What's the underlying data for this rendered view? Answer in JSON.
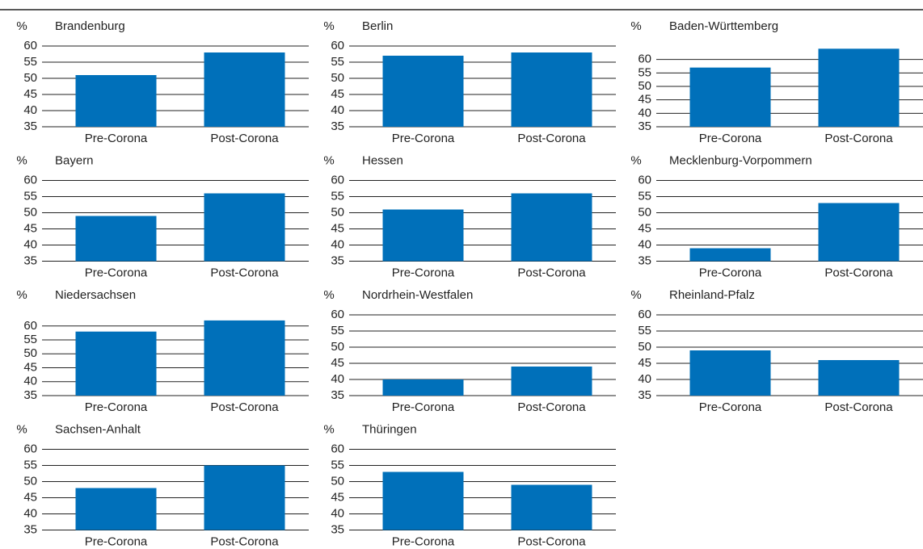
{
  "chart_data": [
    {
      "type": "bar",
      "title": "Brandenburg",
      "y_label": "%",
      "categories": [
        "Pre-Corona",
        "Post-Corona"
      ],
      "values": [
        51,
        58
      ],
      "color": "#0070ba",
      "ylim": [
        35,
        60
      ],
      "yticks": [
        35,
        40,
        45,
        50,
        55,
        60
      ]
    },
    {
      "type": "bar",
      "title": "Berlin",
      "y_label": "%",
      "categories": [
        "Pre-Corona",
        "Post-Corona"
      ],
      "values": [
        57,
        58
      ],
      "color": "#0070ba",
      "ylim": [
        35,
        60
      ],
      "yticks": [
        35,
        40,
        45,
        50,
        55,
        60
      ]
    },
    {
      "type": "bar",
      "title": "Baden-Württemberg",
      "y_label": "%",
      "categories": [
        "Pre-Corona",
        "Post-Corona"
      ],
      "values": [
        57,
        64
      ],
      "color": "#0070ba",
      "ylim": [
        35,
        65
      ],
      "yticks": [
        35,
        40,
        45,
        50,
        55,
        60
      ]
    },
    {
      "type": "bar",
      "title": "Bayern",
      "y_label": "%",
      "categories": [
        "Pre-Corona",
        "Post-Corona"
      ],
      "values": [
        49,
        56
      ],
      "color": "#0070ba",
      "ylim": [
        35,
        60
      ],
      "yticks": [
        35,
        40,
        45,
        50,
        55,
        60
      ]
    },
    {
      "type": "bar",
      "title": "Hessen",
      "y_label": "%",
      "categories": [
        "Pre-Corona",
        "Post-Corona"
      ],
      "values": [
        51,
        56
      ],
      "color": "#0070ba",
      "ylim": [
        35,
        60
      ],
      "yticks": [
        35,
        40,
        45,
        50,
        55,
        60
      ]
    },
    {
      "type": "bar",
      "title": "Mecklenburg-Vorpommern",
      "y_label": "%",
      "categories": [
        "Pre-Corona",
        "Post-Corona"
      ],
      "values": [
        39,
        53
      ],
      "color": "#0070ba",
      "ylim": [
        35,
        60
      ],
      "yticks": [
        35,
        40,
        45,
        50,
        55,
        60
      ]
    },
    {
      "type": "bar",
      "title": "Niedersachsen",
      "y_label": "%",
      "categories": [
        "Pre-Corona",
        "Post-Corona"
      ],
      "values": [
        58,
        62
      ],
      "color": "#0070ba",
      "ylim": [
        35,
        64
      ],
      "yticks": [
        35,
        40,
        45,
        50,
        55,
        60
      ]
    },
    {
      "type": "bar",
      "title": "Nordrhein-Westfalen",
      "y_label": "%",
      "categories": [
        "Pre-Corona",
        "Post-Corona"
      ],
      "values": [
        40,
        44
      ],
      "color": "#0070ba",
      "ylim": [
        35,
        60
      ],
      "yticks": [
        35,
        40,
        45,
        50,
        55,
        60
      ]
    },
    {
      "type": "bar",
      "title": "Rheinland-Pfalz",
      "y_label": "%",
      "categories": [
        "Pre-Corona",
        "Post-Corona"
      ],
      "values": [
        49,
        46
      ],
      "color": "#0070ba",
      "ylim": [
        35,
        60
      ],
      "yticks": [
        35,
        40,
        45,
        50,
        55,
        60
      ]
    },
    {
      "type": "bar",
      "title": "Sachsen-Anhalt",
      "y_label": "%",
      "categories": [
        "Pre-Corona",
        "Post-Corona"
      ],
      "values": [
        48,
        55
      ],
      "color": "#0070ba",
      "ylim": [
        35,
        60
      ],
      "yticks": [
        35,
        40,
        45,
        50,
        55,
        60
      ]
    },
    {
      "type": "bar",
      "title": "Thüringen",
      "y_label": "%",
      "categories": [
        "Pre-Corona",
        "Post-Corona"
      ],
      "values": [
        53,
        49
      ],
      "color": "#0070ba",
      "ylim": [
        35,
        60
      ],
      "yticks": [
        35,
        40,
        45,
        50,
        55,
        60
      ]
    }
  ]
}
